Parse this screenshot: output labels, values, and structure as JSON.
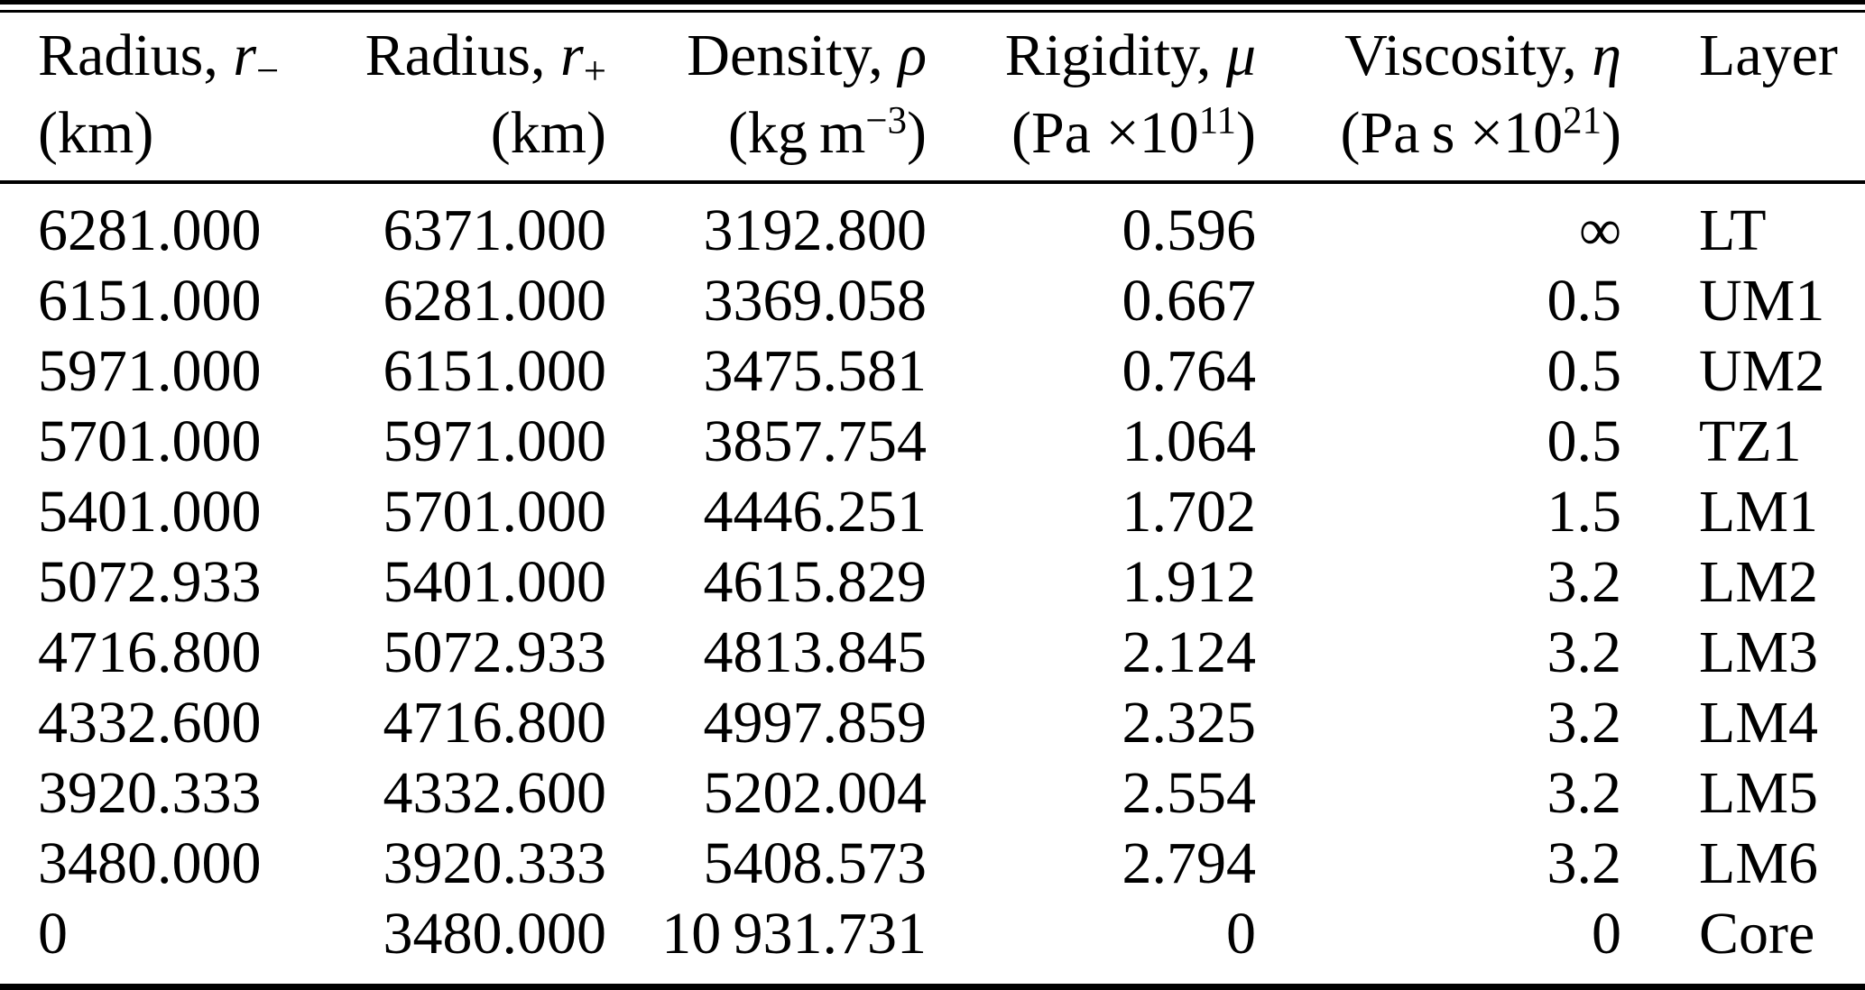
{
  "colors": {
    "text": "#000000",
    "background": "#ffffff",
    "rule": "#000000"
  },
  "table": {
    "columns": [
      {
        "id": "radius-minus",
        "align": "left",
        "label": "Radius, ",
        "symbol": "r",
        "sub": "−",
        "unit_prefix": "(km)"
      },
      {
        "id": "radius-plus",
        "align": "right",
        "label": "Radius, ",
        "symbol": "r",
        "sub": "+",
        "unit_prefix": "(km)"
      },
      {
        "id": "density",
        "align": "right",
        "label": "Density, ",
        "symbol": "ρ",
        "unit_prefix": "(kg m",
        "unit_sup": "−3",
        "unit_suffix": ")"
      },
      {
        "id": "rigidity",
        "align": "right",
        "label": "Rigidity, ",
        "symbol": "μ",
        "unit_prefix": "(Pa ×10",
        "unit_sup": "11",
        "unit_suffix": ")"
      },
      {
        "id": "viscosity",
        "align": "right",
        "label": "Viscosity, ",
        "symbol": "η",
        "unit_prefix": "(Pa s ×10",
        "unit_sup": "21",
        "unit_suffix": ")"
      },
      {
        "id": "layer",
        "align": "left",
        "label": "Layer"
      }
    ],
    "rows": [
      [
        "6281.000",
        "6371.000",
        "3192.800",
        "0.596",
        "∞",
        "LT"
      ],
      [
        "6151.000",
        "6281.000",
        "3369.058",
        "0.667",
        "0.5",
        "UM1"
      ],
      [
        "5971.000",
        "6151.000",
        "3475.581",
        "0.764",
        "0.5",
        "UM2"
      ],
      [
        "5701.000",
        "5971.000",
        "3857.754",
        "1.064",
        "0.5",
        "TZ1"
      ],
      [
        "5401.000",
        "5701.000",
        "4446.251",
        "1.702",
        "1.5",
        "LM1"
      ],
      [
        "5072.933",
        "5401.000",
        "4615.829",
        "1.912",
        "3.2",
        "LM2"
      ],
      [
        "4716.800",
        "5072.933",
        "4813.845",
        "2.124",
        "3.2",
        "LM3"
      ],
      [
        "4332.600",
        "4716.800",
        "4997.859",
        "2.325",
        "3.2",
        "LM4"
      ],
      [
        "3920.333",
        "4332.600",
        "5202.004",
        "2.554",
        "3.2",
        "LM5"
      ],
      [
        "3480.000",
        "3920.333",
        "5408.573",
        "2.794",
        "3.2",
        "LM6"
      ],
      [
        "0",
        "3480.000",
        "10 931.731",
        "0",
        "0",
        "Core"
      ]
    ]
  }
}
